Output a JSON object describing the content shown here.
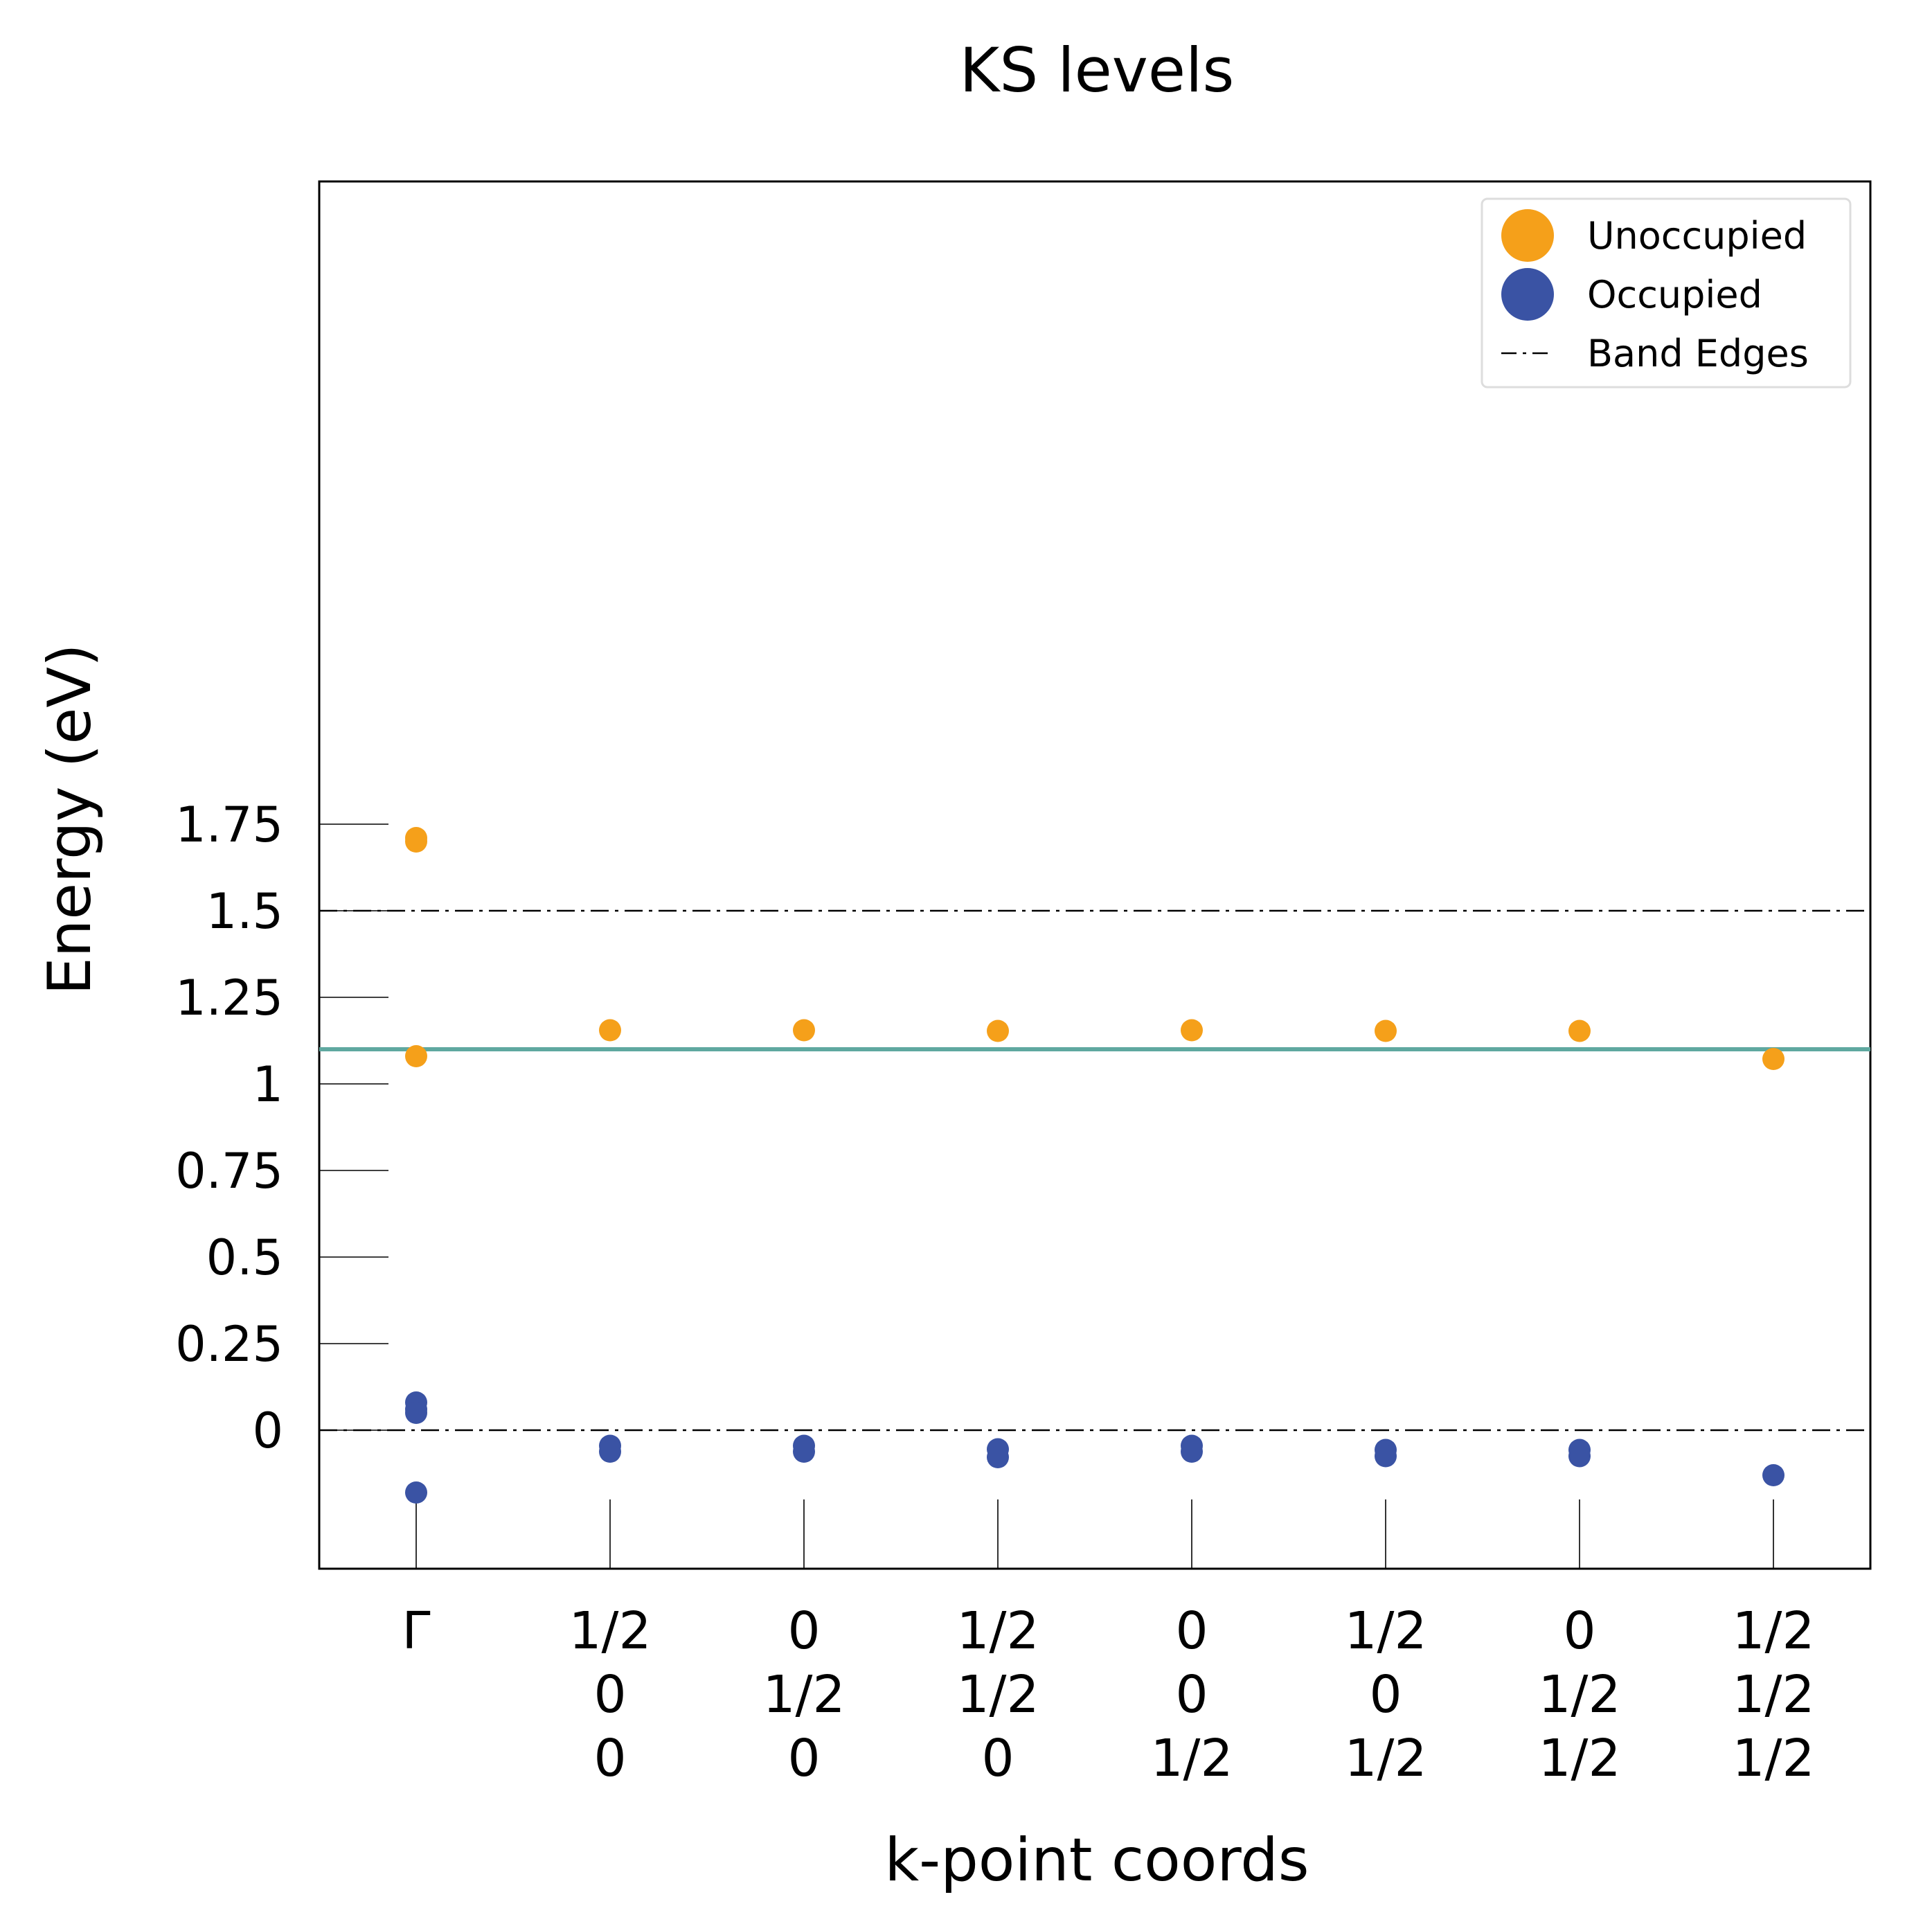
{
  "chart_data": {
    "type": "scatter",
    "title": "KS levels",
    "xlabel": "k-point coords",
    "ylabel": "Energy (eV)",
    "ylim": [
      -0.2,
      1.8
    ],
    "yticks": [
      0,
      0.25,
      0.5,
      0.75,
      1,
      1.25,
      1.5,
      1.75
    ],
    "ytick_labels": [
      "0",
      "0.25",
      "0.5",
      "0.75",
      "1",
      "1.25",
      "1.5",
      "1.75"
    ],
    "grid": false,
    "legend_position": "top-right",
    "x_categories": [
      [
        "Γ"
      ],
      [
        "1/2",
        "0",
        "0"
      ],
      [
        "0",
        "1/2",
        "0"
      ],
      [
        "1/2",
        "1/2",
        "0"
      ],
      [
        "0",
        "0",
        "1/2"
      ],
      [
        "1/2",
        "0",
        "1/2"
      ],
      [
        "0",
        "1/2",
        "1/2"
      ],
      [
        "1/2",
        "1/2",
        "1/2"
      ]
    ],
    "series": [
      {
        "name": "Unoccupied",
        "color": "#F5A01A",
        "points": [
          [
            0,
            1.71
          ],
          [
            0,
            1.7
          ],
          [
            0,
            1.08
          ],
          [
            1,
            1.155
          ],
          [
            2,
            1.155
          ],
          [
            3,
            1.153
          ],
          [
            4,
            1.155
          ],
          [
            5,
            1.153
          ],
          [
            6,
            1.153
          ],
          [
            7,
            1.072
          ]
        ]
      },
      {
        "name": "Occupied",
        "color": "#3A53A4",
        "points": [
          [
            0,
            0.08
          ],
          [
            0,
            0.06
          ],
          [
            0,
            0.05
          ],
          [
            0,
            -0.18
          ],
          [
            1,
            -0.045
          ],
          [
            1,
            -0.062
          ],
          [
            2,
            -0.045
          ],
          [
            2,
            -0.062
          ],
          [
            3,
            -0.055
          ],
          [
            3,
            -0.078
          ],
          [
            4,
            -0.045
          ],
          [
            4,
            -0.062
          ],
          [
            5,
            -0.057
          ],
          [
            5,
            -0.075
          ],
          [
            6,
            -0.057
          ],
          [
            6,
            -0.075
          ],
          [
            7,
            -0.13
          ]
        ]
      }
    ],
    "band_edges": {
      "name": "Band Edges",
      "values": [
        0,
        1.5
      ],
      "color": "#000000",
      "style": "dash-dot"
    },
    "reference_line": {
      "value": 1.1,
      "color": "#5FA8A0"
    }
  }
}
